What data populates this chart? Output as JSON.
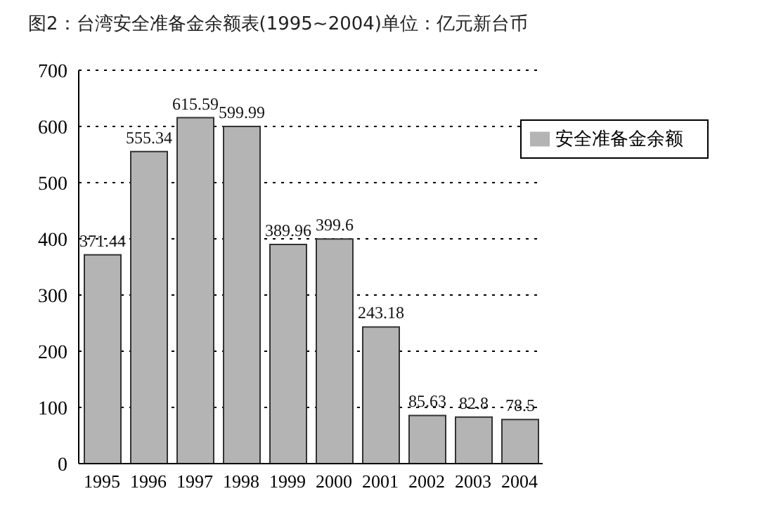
{
  "chart_data": {
    "type": "bar",
    "title": "图2：台湾安全准备金余额表(1995~2004)单位：亿元新台币",
    "categories": [
      "1995",
      "1996",
      "1997",
      "1998",
      "1999",
      "2000",
      "2001",
      "2002",
      "2003",
      "2004"
    ],
    "series": [
      {
        "name": "安全准备金余额",
        "color": "#b4b4b4",
        "values": [
          371.44,
          555.34,
          615.59,
          599.99,
          389.96,
          399.6,
          243.18,
          85.63,
          82.8,
          78.5
        ]
      }
    ],
    "ylim": [
      0,
      700
    ],
    "yticks": [
      0,
      100,
      200,
      300,
      400,
      500,
      600,
      700
    ],
    "grid": "y",
    "legend": "top right",
    "data_labels": true
  }
}
